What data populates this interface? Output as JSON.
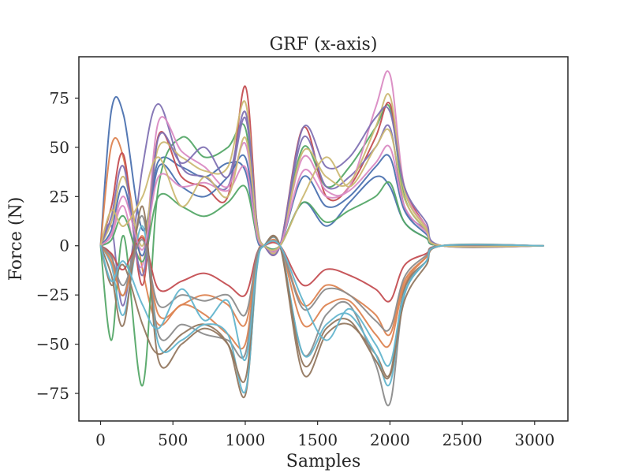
{
  "chart_data": {
    "type": "line",
    "title": "GRF (x-axis)",
    "xlabel": "Samples",
    "ylabel": "Force (N)",
    "xlim": [
      -150,
      3230
    ],
    "ylim": [
      -89,
      96
    ],
    "xticks": [
      0,
      500,
      1000,
      1500,
      2000,
      2500,
      3000
    ],
    "xtick_labels": [
      "0",
      "500",
      "1000",
      "1500",
      "2000",
      "2500",
      "3000"
    ],
    "yticks": [
      -75,
      -50,
      -25,
      0,
      25,
      50,
      75
    ],
    "ytick_labels": [
      "−75",
      "−50",
      "−25",
      "0",
      "25",
      "50",
      "75"
    ],
    "grid": false,
    "legend": "none",
    "colors": [
      "#4c72b0",
      "#dd8452",
      "#55a868",
      "#c44e52",
      "#8172b3",
      "#937860",
      "#da8bc3",
      "#8c8c8c",
      "#ccb974",
      "#64b5cd"
    ],
    "series": [
      {
        "x": [
          0,
          75,
          160,
          290,
          400,
          560,
          720,
          880,
          1000,
          1080,
          1130,
          1240,
          1400,
          1560,
          1720,
          1900,
          2000,
          2100,
          2250,
          2360,
          3060
        ],
        "y": [
          0,
          69,
          66,
          8,
          43,
          40,
          35,
          42,
          38,
          4,
          0,
          0,
          22,
          10,
          22,
          35,
          30,
          12,
          4,
          0,
          0
        ]
      },
      {
        "x": [
          0,
          75,
          160,
          290,
          400,
          560,
          720,
          880,
          1000,
          1080,
          1130,
          1240,
          1400,
          1560,
          1720,
          1900,
          2000,
          2100,
          2250,
          2360,
          3060
        ],
        "y": [
          0,
          51,
          44,
          -12,
          -40,
          -30,
          -35,
          -45,
          -50,
          -6,
          0,
          0,
          -40,
          -30,
          -28,
          -45,
          -50,
          -20,
          -6,
          0,
          0
        ]
      },
      {
        "x": [
          0,
          75,
          160,
          290,
          400,
          560,
          720,
          880,
          1000,
          1080,
          1130,
          1240,
          1400,
          1560,
          1720,
          1900,
          2000,
          2100,
          2250,
          2360,
          3060
        ],
        "y": [
          0,
          -48,
          5,
          -71,
          30,
          55,
          45,
          50,
          60,
          8,
          0,
          0,
          50,
          30,
          40,
          60,
          70,
          25,
          8,
          0,
          0
        ]
      },
      {
        "x": [
          0,
          75,
          160,
          290,
          400,
          560,
          720,
          880,
          1000,
          1080,
          1130,
          1240,
          1400,
          1560,
          1720,
          1900,
          2000,
          2100,
          2250,
          2360,
          3060
        ],
        "y": [
          0,
          20,
          46,
          -20,
          56,
          35,
          30,
          25,
          81,
          12,
          0,
          0,
          60,
          25,
          30,
          55,
          72,
          30,
          10,
          0,
          0
        ]
      },
      {
        "x": [
          0,
          75,
          160,
          290,
          400,
          560,
          720,
          880,
          1000,
          1080,
          1130,
          1240,
          1400,
          1560,
          1720,
          1900,
          2000,
          2100,
          2250,
          2360,
          3060
        ],
        "y": [
          0,
          10,
          -30,
          40,
          72,
          40,
          35,
          30,
          65,
          10,
          0,
          0,
          55,
          30,
          35,
          50,
          60,
          20,
          8,
          0,
          0
        ]
      },
      {
        "x": [
          0,
          75,
          160,
          290,
          400,
          560,
          720,
          880,
          1000,
          1080,
          1130,
          1240,
          1400,
          1560,
          1720,
          1900,
          2000,
          2100,
          2250,
          2360,
          3060
        ],
        "y": [
          0,
          -20,
          -10,
          -40,
          -55,
          -45,
          -40,
          -50,
          -76,
          -10,
          0,
          0,
          -65,
          -45,
          -40,
          -55,
          -65,
          -22,
          -8,
          0,
          0
        ]
      },
      {
        "x": [
          0,
          75,
          160,
          290,
          400,
          560,
          720,
          880,
          1000,
          1080,
          1130,
          1240,
          1400,
          1560,
          1720,
          1900,
          2000,
          2100,
          2250,
          2360,
          3060
        ],
        "y": [
          0,
          5,
          20,
          -10,
          63,
          48,
          40,
          30,
          52,
          8,
          0,
          0,
          45,
          28,
          30,
          70,
          87,
          30,
          10,
          0,
          0
        ]
      },
      {
        "x": [
          0,
          75,
          160,
          290,
          400,
          560,
          720,
          880,
          1000,
          1080,
          1130,
          1240,
          1400,
          1560,
          1720,
          1900,
          2000,
          2100,
          2250,
          2360,
          3060
        ],
        "y": [
          0,
          -5,
          -25,
          15,
          -45,
          -40,
          -45,
          -48,
          -55,
          -8,
          0,
          0,
          -55,
          -35,
          -30,
          -60,
          -80,
          -25,
          -8,
          0,
          0
        ]
      },
      {
        "x": [
          0,
          75,
          160,
          290,
          400,
          560,
          720,
          880,
          1000,
          1080,
          1130,
          1240,
          1400,
          1560,
          1720,
          1900,
          2000,
          2100,
          2250,
          2360,
          3060
        ],
        "y": [
          0,
          12,
          35,
          0,
          50,
          45,
          38,
          40,
          73,
          10,
          0,
          0,
          48,
          35,
          32,
          60,
          76,
          28,
          9,
          0,
          0
        ]
      },
      {
        "x": [
          0,
          75,
          160,
          290,
          400,
          560,
          720,
          880,
          1000,
          1080,
          1130,
          1240,
          1400,
          1560,
          1720,
          1900,
          2000,
          2100,
          2250,
          2360,
          3060
        ],
        "y": [
          0,
          -10,
          -35,
          10,
          -50,
          -48,
          -40,
          -45,
          -74,
          -12,
          0,
          0,
          -55,
          -40,
          -35,
          -55,
          -70,
          -25,
          -8,
          0,
          0
        ]
      },
      {
        "x": [
          0,
          75,
          160,
          290,
          400,
          560,
          720,
          880,
          1000,
          1080,
          1130,
          1240,
          1400,
          1560,
          1720,
          1900,
          2000,
          2100,
          2250,
          2360,
          3060
        ],
        "y": [
          0,
          8,
          30,
          -5,
          40,
          30,
          25,
          35,
          45,
          8,
          0,
          0,
          35,
          20,
          25,
          40,
          45,
          18,
          6,
          0,
          0
        ]
      },
      {
        "x": [
          0,
          75,
          160,
          290,
          400,
          560,
          720,
          880,
          1000,
          1080,
          1130,
          1240,
          1400,
          1560,
          1720,
          1900,
          2000,
          2100,
          2250,
          2360,
          3060
        ],
        "y": [
          0,
          -8,
          -25,
          5,
          -35,
          -30,
          -25,
          -30,
          -40,
          -6,
          0,
          0,
          -30,
          -20,
          -25,
          -35,
          -45,
          -18,
          -6,
          0,
          0
        ]
      },
      {
        "x": [
          0,
          75,
          160,
          290,
          400,
          560,
          720,
          880,
          1000,
          1080,
          1130,
          1240,
          1400,
          1560,
          1720,
          1900,
          2000,
          2100,
          2250,
          2360,
          3060
        ],
        "y": [
          0,
          3,
          15,
          -8,
          25,
          20,
          15,
          22,
          30,
          5,
          0,
          0,
          22,
          12,
          18,
          25,
          32,
          12,
          4,
          0,
          0
        ]
      },
      {
        "x": [
          0,
          75,
          160,
          290,
          400,
          560,
          720,
          880,
          1000,
          1080,
          1130,
          1240,
          1400,
          1560,
          1720,
          1900,
          2000,
          2100,
          2250,
          2360,
          3060
        ],
        "y": [
          0,
          -4,
          -12,
          4,
          -22,
          -18,
          -14,
          -20,
          -25,
          -4,
          0,
          0,
          -20,
          -12,
          -15,
          -22,
          -28,
          -10,
          -4,
          0,
          0
        ]
      },
      {
        "x": [
          0,
          75,
          160,
          290,
          400,
          560,
          720,
          880,
          1000,
          1080,
          1130,
          1240,
          1400,
          1560,
          1720,
          1900,
          2000,
          2100,
          2250,
          2360,
          3060
        ],
        "y": [
          0,
          15,
          40,
          -15,
          55,
          42,
          50,
          35,
          68,
          12,
          0,
          0,
          60,
          40,
          45,
          65,
          68,
          30,
          12,
          0,
          0
        ]
      },
      {
        "x": [
          0,
          75,
          160,
          290,
          400,
          560,
          720,
          880,
          1000,
          1080,
          1130,
          1240,
          1400,
          1560,
          1720,
          1900,
          2000,
          2100,
          2250,
          2360,
          3060
        ],
        "y": [
          0,
          -15,
          -40,
          20,
          -58,
          -50,
          -42,
          -50,
          -68,
          -10,
          0,
          0,
          -60,
          -42,
          -38,
          -58,
          -66,
          -28,
          -10,
          0,
          0
        ]
      },
      {
        "x": [
          0,
          75,
          160,
          290,
          400,
          560,
          720,
          880,
          1000,
          1080,
          1130,
          1240,
          1400,
          1560,
          1720,
          1900,
          2000,
          2100,
          2250,
          2360,
          3060
        ],
        "y": [
          0,
          6,
          25,
          -2,
          35,
          30,
          32,
          28,
          40,
          6,
          0,
          0,
          38,
          25,
          28,
          42,
          50,
          20,
          7,
          0,
          0
        ]
      },
      {
        "x": [
          0,
          75,
          160,
          290,
          400,
          560,
          720,
          880,
          1000,
          1080,
          1130,
          1240,
          1400,
          1560,
          1720,
          1900,
          2000,
          2100,
          2250,
          2360,
          3060
        ],
        "y": [
          0,
          -6,
          -20,
          3,
          -30,
          -25,
          -28,
          -25,
          -35,
          -5,
          0,
          0,
          -32,
          -22,
          -25,
          -38,
          -42,
          -16,
          -5,
          0,
          0
        ]
      },
      {
        "x": [
          0,
          75,
          160,
          290,
          400,
          560,
          720,
          880,
          1000,
          1080,
          1130,
          1240,
          1400,
          1560,
          1720,
          1900,
          2000,
          2100,
          2250,
          2360,
          3060
        ],
        "y": [
          0,
          18,
          10,
          25,
          45,
          20,
          35,
          25,
          55,
          10,
          0,
          0,
          25,
          45,
          30,
          50,
          58,
          24,
          8,
          0,
          0
        ]
      },
      {
        "x": [
          0,
          75,
          160,
          290,
          400,
          560,
          720,
          880,
          1000,
          1080,
          1130,
          1240,
          1400,
          1560,
          1720,
          1900,
          2000,
          2100,
          2250,
          2360,
          3060
        ],
        "y": [
          0,
          -18,
          -8,
          -30,
          -42,
          -22,
          -38,
          -28,
          -58,
          -10,
          0,
          0,
          -28,
          -48,
          -32,
          -50,
          -60,
          -24,
          -8,
          0,
          0
        ]
      }
    ]
  }
}
